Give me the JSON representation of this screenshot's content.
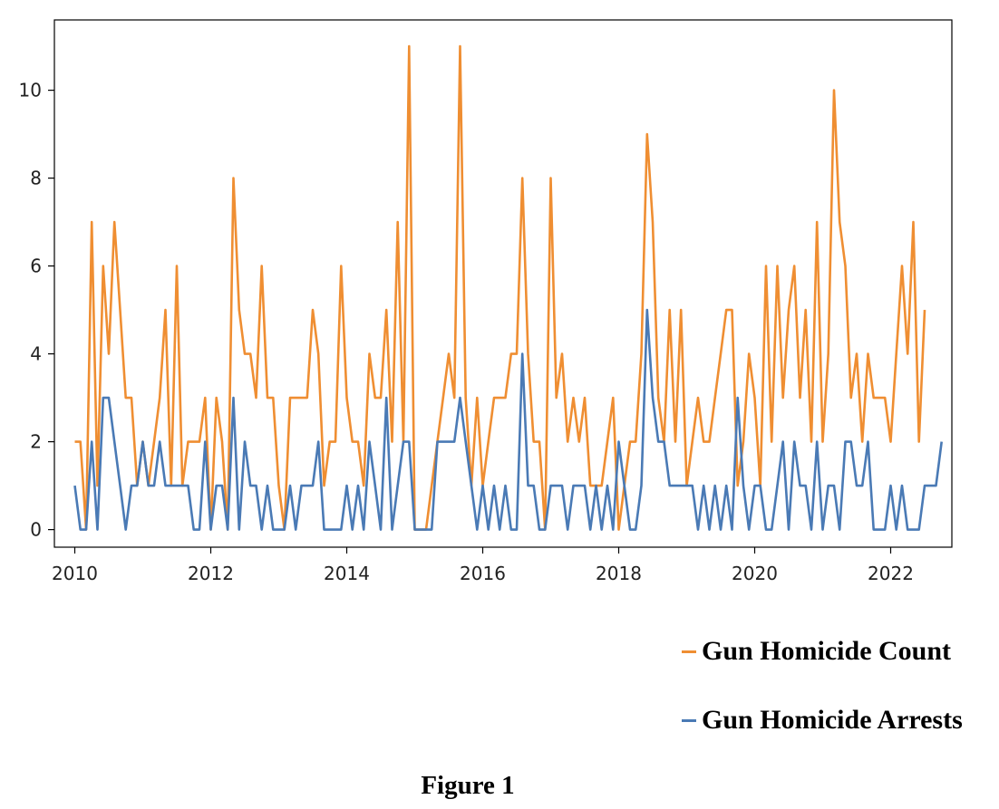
{
  "chart_data": {
    "type": "line",
    "x_start": "2010-01",
    "x_step": "month",
    "xlim": [
      2009.7,
      2022.9
    ],
    "ylim": [
      -0.4,
      11.6
    ],
    "xticks": [
      2010,
      2012,
      2014,
      2016,
      2018,
      2020,
      2022
    ],
    "xtick_labels": [
      "2010",
      "2012",
      "2014",
      "2016",
      "2018",
      "2020",
      "2022"
    ],
    "yticks": [
      0,
      2,
      4,
      6,
      8,
      10
    ],
    "ytick_labels": [
      "0",
      "2",
      "4",
      "6",
      "8",
      "10"
    ],
    "grid": false,
    "legend_position": "below-right",
    "series": [
      {
        "name": "Gun Homicide Count",
        "color": "#ef8e32",
        "values": [
          2,
          2,
          0,
          7,
          1,
          6,
          4,
          7,
          5,
          3,
          3,
          1,
          2,
          1,
          2,
          3,
          5,
          1,
          6,
          1,
          2,
          2,
          2,
          3,
          0,
          3,
          2,
          0,
          8,
          5,
          4,
          4,
          3,
          6,
          3,
          3,
          1,
          0,
          3,
          3,
          3,
          3,
          5,
          4,
          1,
          2,
          2,
          6,
          3,
          2,
          2,
          1,
          4,
          3,
          3,
          5,
          2,
          7,
          2,
          11,
          0,
          0,
          0,
          1,
          2,
          3,
          4,
          3,
          11,
          3,
          1,
          3,
          1,
          2,
          3,
          3,
          3,
          4,
          4,
          8,
          4,
          2,
          2,
          0,
          8,
          3,
          4,
          2,
          3,
          2,
          3,
          1,
          1,
          1,
          2,
          3,
          0,
          1,
          2,
          2,
          4,
          9,
          7,
          3,
          2,
          5,
          2,
          5,
          1,
          2,
          3,
          2,
          2,
          3,
          4,
          5,
          5,
          1,
          2,
          4,
          3,
          1,
          6,
          2,
          6,
          3,
          5,
          6,
          3,
          5,
          2,
          7,
          2,
          4,
          10,
          7,
          6,
          3,
          4,
          2,
          4,
          3,
          3,
          3,
          2,
          4,
          6,
          4,
          7,
          2,
          5
        ]
      },
      {
        "name": "Gun Homicide Arrests",
        "color": "#4a7ab5",
        "values": [
          1,
          0,
          0,
          2,
          0,
          3,
          3,
          2,
          1,
          0,
          1,
          1,
          2,
          1,
          1,
          2,
          1,
          1,
          1,
          1,
          1,
          0,
          0,
          2,
          0,
          1,
          1,
          0,
          3,
          0,
          2,
          1,
          1,
          0,
          1,
          0,
          0,
          0,
          1,
          0,
          1,
          1,
          1,
          2,
          0,
          0,
          0,
          0,
          1,
          0,
          1,
          0,
          2,
          1,
          0,
          3,
          0,
          1,
          2,
          2,
          0,
          0,
          0,
          0,
          2,
          2,
          2,
          2,
          3,
          2,
          1,
          0,
          1,
          0,
          1,
          0,
          1,
          0,
          0,
          4,
          1,
          1,
          0,
          0,
          1,
          1,
          1,
          0,
          1,
          1,
          1,
          0,
          1,
          0,
          1,
          0,
          2,
          1,
          0,
          0,
          1,
          5,
          3,
          2,
          2,
          1,
          1,
          1,
          1,
          1,
          0,
          1,
          0,
          1,
          0,
          1,
          0,
          3,
          1,
          0,
          1,
          1,
          0,
          0,
          1,
          2,
          0,
          2,
          1,
          1,
          0,
          2,
          0,
          1,
          1,
          0,
          2,
          2,
          1,
          1,
          2,
          0,
          0,
          0,
          1,
          0,
          1,
          0,
          0,
          0,
          1,
          1,
          1,
          2
        ]
      }
    ]
  },
  "legend": {
    "items": [
      {
        "label": "Gun Homicide Count",
        "color": "#ef8e32"
      },
      {
        "label": "Gun Homicide Arrests",
        "color": "#4a7ab5"
      }
    ]
  },
  "caption": "Figure 1"
}
